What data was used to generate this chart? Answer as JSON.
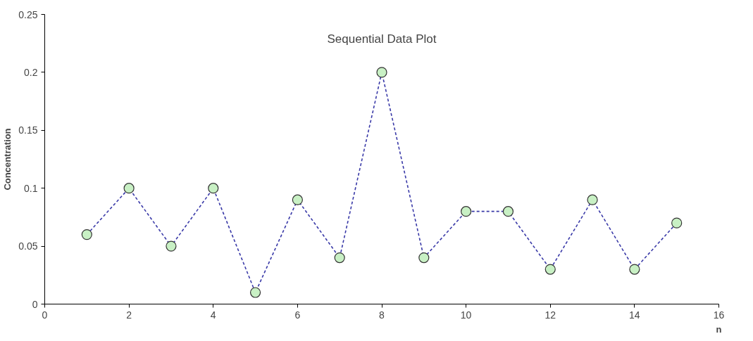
{
  "chart_data": {
    "type": "line",
    "title": "Sequential Data Plot",
    "xlabel": "n",
    "ylabel": "Concentration",
    "x": [
      1,
      2,
      3,
      4,
      5,
      6,
      7,
      8,
      9,
      10,
      11,
      12,
      13,
      14,
      15
    ],
    "series": [
      {
        "color": "#3a3aa8",
        "values": [
          0.06,
          0.1,
          0.05,
          0.1,
          0.01,
          0.09,
          0.04,
          0.2,
          0.04,
          0.08,
          0.08,
          0.03,
          0.09,
          0.03,
          0.07
        ]
      }
    ],
    "marker": "circle",
    "line_style": "dashed",
    "grid": false,
    "xlim": [
      0,
      16
    ],
    "xticks": [
      0,
      2,
      4,
      6,
      8,
      10,
      12,
      14,
      16
    ],
    "ylim": [
      0,
      0.25
    ],
    "yticks": [
      0,
      0.05,
      0.1,
      0.15,
      0.2,
      0.25
    ]
  }
}
